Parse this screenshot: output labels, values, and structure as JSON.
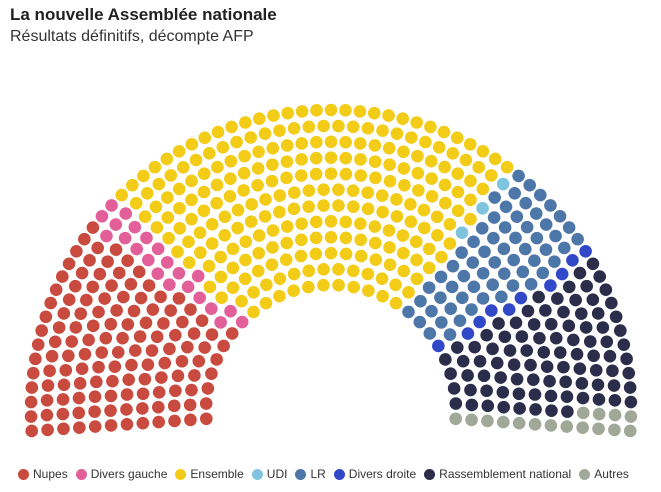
{
  "header": {
    "title": "La nouvelle Assemblée nationale",
    "subtitle": "Résultats définitifs, décompte AFP"
  },
  "chart_data": {
    "type": "parliament",
    "title": "La nouvelle Assemblée nationale",
    "subtitle": "Résultats définitifs, décompte AFP",
    "total_seats": 577,
    "order": "left-to-right",
    "series": [
      {
        "name": "Nupes",
        "seats": 131,
        "color": "#c94a3e"
      },
      {
        "name": "Divers gauche",
        "seats": 22,
        "color": "#e35f9a"
      },
      {
        "name": "Ensemble",
        "seats": 245,
        "color": "#f2cc17"
      },
      {
        "name": "UDI",
        "seats": 3,
        "color": "#7fc4df"
      },
      {
        "name": "LR",
        "seats": 61,
        "color": "#4e77a9"
      },
      {
        "name": "Divers droite",
        "seats": 10,
        "color": "#3148c9"
      },
      {
        "name": "Rassemblement national",
        "seats": 89,
        "color": "#2b2d4a"
      },
      {
        "name": "Autres",
        "seats": 16,
        "color": "#a2a898"
      }
    ],
    "legend_position": "bottom"
  }
}
